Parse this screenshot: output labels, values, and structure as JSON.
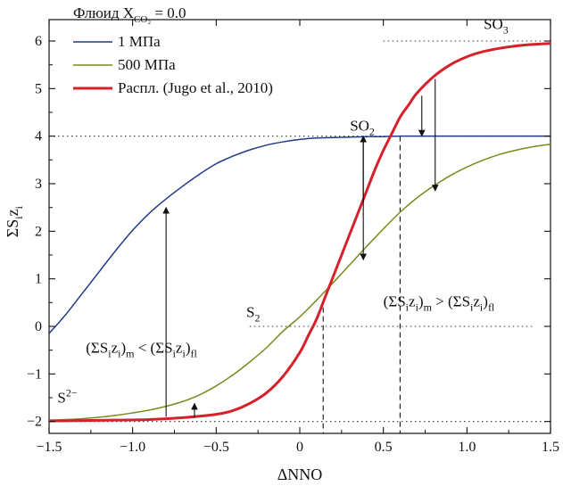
{
  "chart_data": {
    "type": "line",
    "title": "",
    "xlabel": "ΔNNO",
    "ylabel": "ΣSizi",
    "xlim": [
      -1.5,
      1.5
    ],
    "ylim": [
      -2.25,
      6.45
    ],
    "xticks": [
      "−1.5",
      "−1.0",
      "−0.5",
      "0",
      "0.5",
      "1.0",
      "1.5"
    ],
    "yticks": [
      "−2",
      "−1",
      "0",
      "1",
      "2",
      "3",
      "4",
      "5",
      "6"
    ],
    "xtick_values": [
      -1.5,
      -1.0,
      -0.5,
      0,
      0.5,
      1.0,
      1.5
    ],
    "ytick_values": [
      -2,
      -1,
      0,
      1,
      2,
      3,
      4,
      5,
      6
    ],
    "legend": {
      "title": "Флюид X",
      "title_sub": "CO₂",
      "title_value": " = 0.0",
      "placement": "top-left"
    },
    "series": [
      {
        "name": "1 МПа",
        "color": "#1f3a8a",
        "x": [
          -1.5,
          -1.4,
          -1.3,
          -1.2,
          -1.1,
          -1.0,
          -0.9,
          -0.8,
          -0.7,
          -0.6,
          -0.5,
          -0.4,
          -0.3,
          -0.2,
          -0.1,
          0.0,
          0.1,
          0.2,
          0.3,
          0.4,
          0.5,
          0.6,
          0.7,
          0.8,
          0.9,
          1.0,
          1.1,
          1.2,
          1.3,
          1.4,
          1.5
        ],
        "y": [
          -0.15,
          0.25,
          0.7,
          1.15,
          1.6,
          2.02,
          2.38,
          2.68,
          2.95,
          3.2,
          3.42,
          3.58,
          3.71,
          3.81,
          3.88,
          3.93,
          3.96,
          3.97,
          3.98,
          3.99,
          3.99,
          4.0,
          4.0,
          4.0,
          4.0,
          4.0,
          4.0,
          4.0,
          4.0,
          4.0,
          4.0
        ]
      },
      {
        "name": "500 МПа",
        "color": "#7a8a1e",
        "x": [
          -1.5,
          -1.4,
          -1.3,
          -1.2,
          -1.1,
          -1.0,
          -0.9,
          -0.8,
          -0.7,
          -0.6,
          -0.5,
          -0.4,
          -0.3,
          -0.2,
          -0.1,
          0.0,
          0.1,
          0.2,
          0.3,
          0.4,
          0.5,
          0.6,
          0.7,
          0.8,
          0.9,
          1.0,
          1.1,
          1.2,
          1.3,
          1.4,
          1.5
        ],
        "y": [
          -1.97,
          -1.96,
          -1.94,
          -1.91,
          -1.87,
          -1.82,
          -1.76,
          -1.68,
          -1.58,
          -1.44,
          -1.25,
          -1.02,
          -0.75,
          -0.45,
          -0.1,
          0.2,
          0.55,
          0.92,
          1.3,
          1.68,
          2.05,
          2.4,
          2.7,
          2.95,
          3.17,
          3.35,
          3.5,
          3.62,
          3.71,
          3.78,
          3.83
        ]
      },
      {
        "name": "Распл. (Jugo et al., 2010)",
        "color": "#d6202a",
        "x": [
          -1.5,
          -1.3,
          -1.1,
          -0.9,
          -0.7,
          -0.5,
          -0.4,
          -0.3,
          -0.2,
          -0.1,
          0.0,
          0.05,
          0.1,
          0.15,
          0.2,
          0.25,
          0.3,
          0.35,
          0.4,
          0.45,
          0.5,
          0.55,
          0.6,
          0.65,
          0.7,
          0.8,
          0.9,
          1.0,
          1.1,
          1.2,
          1.3,
          1.4,
          1.5
        ],
        "y": [
          -1.99,
          -1.98,
          -1.97,
          -1.96,
          -1.92,
          -1.85,
          -1.77,
          -1.62,
          -1.4,
          -1.05,
          -0.55,
          -0.2,
          0.15,
          0.6,
          1.05,
          1.5,
          1.95,
          2.4,
          2.85,
          3.3,
          3.7,
          4.05,
          4.4,
          4.65,
          4.9,
          5.25,
          5.5,
          5.67,
          5.78,
          5.85,
          5.9,
          5.93,
          5.95
        ]
      }
    ],
    "reference_lines": [
      {
        "y": 4,
        "x_range": [
          -1.5,
          1.5
        ]
      },
      {
        "y": 6,
        "x_range": [
          0.5,
          1.5
        ]
      },
      {
        "y": 0,
        "x_range": [
          -0.3,
          1.4
        ]
      },
      {
        "y": -2,
        "x_range": [
          -1.5,
          1.5
        ]
      }
    ],
    "vertical_dashed": [
      {
        "x": 0.14,
        "from_y": 0.4,
        "to_y": -2.25
      },
      {
        "x": 0.6,
        "from_y": 4.0,
        "to_y": -2.25
      }
    ],
    "arrows": [
      {
        "x": -0.8,
        "from_y": -1.9,
        "to_y": 2.5
      },
      {
        "x": -0.63,
        "from_y": -1.92,
        "to_y": -1.62
      },
      {
        "x": 0.38,
        "from_y": 4.0,
        "to_y": 1.4
      },
      {
        "x": 0.38,
        "from_y": 2.6,
        "to_y": 4.0
      },
      {
        "x": 0.73,
        "from_y": 4.85,
        "to_y": 4.0
      },
      {
        "x": 0.81,
        "from_y": 5.2,
        "to_y": 2.85
      }
    ],
    "annotations": [
      {
        "id": "so3",
        "base": "SO",
        "sub": "3",
        "x": 1.1,
        "y": 6.25
      },
      {
        "id": "so2",
        "base": "SO",
        "sub": "2",
        "x": 0.3,
        "y": 4.12
      },
      {
        "id": "s2",
        "base": "S",
        "sub": "2",
        "x": -0.32,
        "y": 0.2
      },
      {
        "id": "s2minus",
        "base": "S",
        "sup": "2−",
        "x": -1.45,
        "y": -1.6
      },
      {
        "id": "ineq_left",
        "text": "(ΣSizi)m < (ΣSizi)fl",
        "x": -1.28,
        "y": -0.55
      },
      {
        "id": "ineq_right",
        "text": "(ΣSizi)m > (ΣSizi)fl",
        "x": 0.5,
        "y": 0.42
      }
    ]
  }
}
